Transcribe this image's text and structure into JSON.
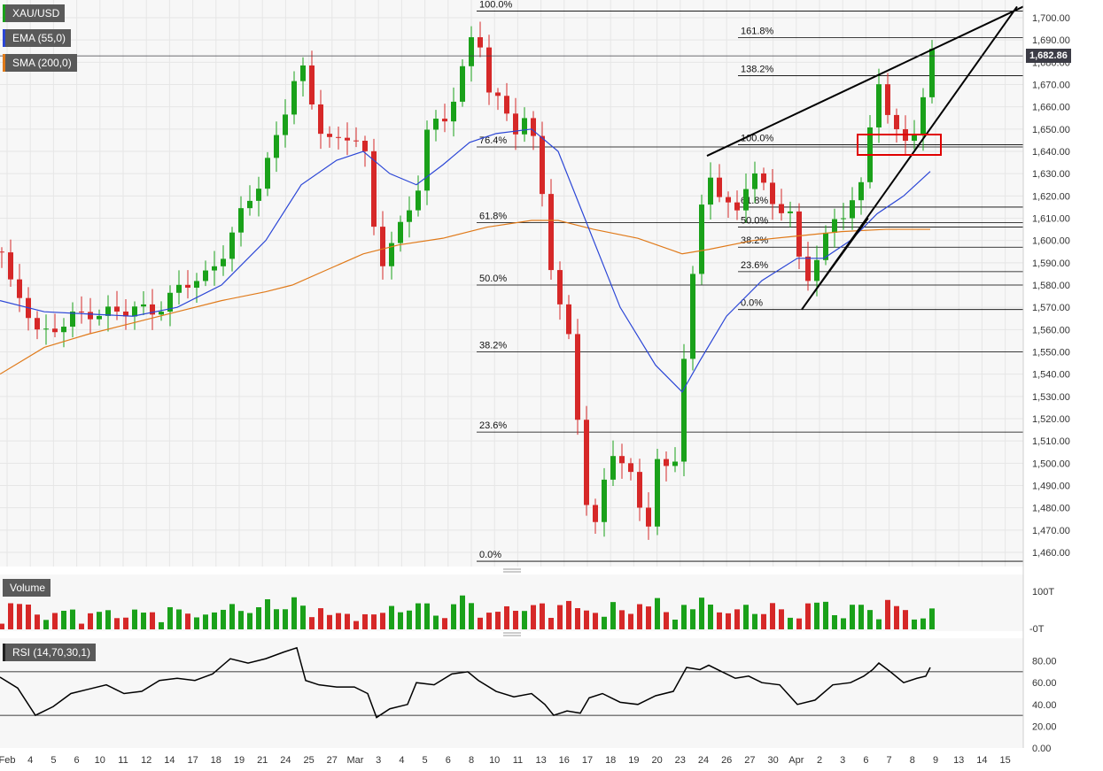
{
  "legend": {
    "symbol": "XAU/USD",
    "ema": "EMA (55,0)",
    "sma": "SMA (200,0)",
    "volume": "Volume",
    "rsi": "RSI (14,70,30,1)"
  },
  "last_price_label": "1,682.86",
  "colors": {
    "bg": "#f7f7f7",
    "up": "#1aa11a",
    "down": "#d62828",
    "ema": "#2b46d6",
    "sma": "#e07a1a",
    "grid": "#e6e6e6",
    "line": "#000000",
    "price_tag": "#3c3c46",
    "highlight_box": "#e00000"
  },
  "chart_data": [
    {
      "type": "candlestick",
      "title": "XAU/USD",
      "ylim": [
        1455,
        1705
      ],
      "y_ticks": [
        "1,460.00",
        "1,470.00",
        "1,480.00",
        "1,490.00",
        "1,500.00",
        "1,510.00",
        "1,520.00",
        "1,530.00",
        "1,540.00",
        "1,550.00",
        "1,560.00",
        "1,570.00",
        "1,580.00",
        "1,590.00",
        "1,600.00",
        "1,610.00",
        "1,620.00",
        "1,630.00",
        "1,640.00",
        "1,650.00",
        "1,660.00",
        "1,670.00",
        "1,680.00",
        "1,690.00",
        "1,700.00"
      ],
      "x_ticks": [
        "Feb",
        "4",
        "5",
        "6",
        "10",
        "11",
        "12",
        "14",
        "17",
        "18",
        "19",
        "21",
        "24",
        "25",
        "27",
        "Mar",
        "3",
        "4",
        "5",
        "6",
        "8",
        "10",
        "11",
        "13",
        "16",
        "17",
        "18",
        "19",
        "20",
        "23",
        "24",
        "26",
        "27",
        "30",
        "Apr",
        "2",
        "3",
        "6",
        "7",
        "8",
        "9",
        "13",
        "14",
        "15"
      ],
      "close_path": [
        [
          0,
          1595
        ],
        [
          12,
          1578
        ],
        [
          28,
          1574
        ],
        [
          45,
          1558
        ],
        [
          70,
          1560
        ],
        [
          100,
          1570
        ],
        [
          140,
          1566
        ],
        [
          180,
          1572
        ],
        [
          230,
          1583
        ],
        [
          260,
          1602
        ],
        [
          290,
          1622
        ],
        [
          310,
          1645
        ],
        [
          330,
          1672
        ],
        [
          340,
          1678
        ],
        [
          348,
          1662
        ],
        [
          360,
          1650
        ],
        [
          380,
          1645
        ],
        [
          400,
          1650
        ],
        [
          418,
          1630
        ],
        [
          425,
          1580
        ],
        [
          440,
          1600
        ],
        [
          470,
          1620
        ],
        [
          480,
          1648
        ],
        [
          500,
          1650
        ],
        [
          515,
          1670
        ],
        [
          530,
          1690
        ],
        [
          540,
          1694
        ],
        [
          550,
          1668
        ],
        [
          565,
          1658
        ],
        [
          580,
          1650
        ],
        [
          595,
          1660
        ],
        [
          605,
          1640
        ],
        [
          618,
          1605
        ],
        [
          625,
          1575
        ],
        [
          640,
          1560
        ],
        [
          650,
          1530
        ],
        [
          660,
          1490
        ],
        [
          670,
          1470
        ],
        [
          690,
          1505
        ],
        [
          700,
          1500
        ],
        [
          715,
          1490
        ],
        [
          730,
          1470
        ],
        [
          740,
          1505
        ],
        [
          760,
          1490
        ],
        [
          770,
          1540
        ],
        [
          780,
          1575
        ],
        [
          790,
          1610
        ],
        [
          800,
          1635
        ],
        [
          815,
          1620
        ],
        [
          830,
          1608
        ],
        [
          840,
          1622
        ],
        [
          850,
          1630
        ],
        [
          870,
          1620
        ],
        [
          890,
          1615
        ],
        [
          900,
          1598
        ],
        [
          905,
          1574
        ],
        [
          920,
          1590
        ],
        [
          940,
          1610
        ],
        [
          960,
          1618
        ],
        [
          975,
          1622
        ],
        [
          985,
          1660
        ],
        [
          992,
          1672
        ],
        [
          1000,
          1658
        ],
        [
          1010,
          1650
        ],
        [
          1025,
          1648
        ],
        [
          1035,
          1650
        ],
        [
          1042,
          1660
        ],
        [
          1050,
          1682
        ]
      ],
      "ema_path": [
        [
          0,
          1573
        ],
        [
          50,
          1568
        ],
        [
          100,
          1567
        ],
        [
          150,
          1566
        ],
        [
          200,
          1570
        ],
        [
          250,
          1580
        ],
        [
          300,
          1600
        ],
        [
          340,
          1625
        ],
        [
          380,
          1636
        ],
        [
          410,
          1640
        ],
        [
          440,
          1630
        ],
        [
          470,
          1625
        ],
        [
          500,
          1634
        ],
        [
          530,
          1644
        ],
        [
          560,
          1648
        ],
        [
          600,
          1650
        ],
        [
          630,
          1640
        ],
        [
          660,
          1610
        ],
        [
          700,
          1570
        ],
        [
          740,
          1544
        ],
        [
          770,
          1532
        ],
        [
          790,
          1546
        ],
        [
          820,
          1566
        ],
        [
          860,
          1582
        ],
        [
          900,
          1592
        ],
        [
          930,
          1592
        ],
        [
          960,
          1600
        ],
        [
          990,
          1612
        ],
        [
          1020,
          1620
        ],
        [
          1050,
          1631
        ]
      ],
      "sma_path": [
        [
          0,
          1540
        ],
        [
          50,
          1552
        ],
        [
          100,
          1558
        ],
        [
          150,
          1563
        ],
        [
          200,
          1568
        ],
        [
          250,
          1573
        ],
        [
          300,
          1577
        ],
        [
          330,
          1580
        ],
        [
          370,
          1587
        ],
        [
          410,
          1594
        ],
        [
          450,
          1598
        ],
        [
          500,
          1601
        ],
        [
          550,
          1606
        ],
        [
          600,
          1609
        ],
        [
          630,
          1609
        ],
        [
          670,
          1605
        ],
        [
          720,
          1601
        ],
        [
          770,
          1594
        ],
        [
          800,
          1596
        ],
        [
          850,
          1600
        ],
        [
          900,
          1602
        ],
        [
          950,
          1604
        ],
        [
          1000,
          1605
        ],
        [
          1050,
          1605
        ]
      ],
      "last_price": 1682.86,
      "fib_retracement_1": [
        {
          "label": "100.0%",
          "price": 1703
        },
        {
          "label": "76.4%",
          "price": 1642
        },
        {
          "label": "61.8%",
          "price": 1608
        },
        {
          "label": "50.0%",
          "price": 1580
        },
        {
          "label": "38.2%",
          "price": 1550
        },
        {
          "label": "23.6%",
          "price": 1514
        },
        {
          "label": "0.0%",
          "price": 1456
        }
      ],
      "fib_retracement_2": [
        {
          "label": "161.8%",
          "price": 1691
        },
        {
          "label": "138.2%",
          "price": 1674
        },
        {
          "label": "100.0%",
          "price": 1643
        },
        {
          "label": "61.8%",
          "price": 1615
        },
        {
          "label": "50.0%",
          "price": 1606
        },
        {
          "label": "38.2%",
          "price": 1597
        },
        {
          "label": "23.6%",
          "price": 1586
        },
        {
          "label": "0.0%",
          "price": 1569
        }
      ]
    },
    {
      "type": "bar",
      "title": "Volume",
      "y_ticks": [
        "100T",
        "-0T"
      ]
    },
    {
      "type": "line",
      "title": "RSI (14,70,30,1)",
      "ylim": [
        0,
        95
      ],
      "levels": [
        70,
        30
      ],
      "y_ticks": [
        "80.00",
        "60.00",
        "40.00",
        "20.00",
        "0.00"
      ],
      "rsi_path": [
        [
          0,
          65
        ],
        [
          20,
          55
        ],
        [
          40,
          30
        ],
        [
          60,
          38
        ],
        [
          80,
          50
        ],
        [
          100,
          54
        ],
        [
          120,
          58
        ],
        [
          140,
          50
        ],
        [
          160,
          52
        ],
        [
          180,
          62
        ],
        [
          200,
          64
        ],
        [
          220,
          62
        ],
        [
          240,
          68
        ],
        [
          260,
          82
        ],
        [
          280,
          78
        ],
        [
          300,
          82
        ],
        [
          320,
          88
        ],
        [
          335,
          92
        ],
        [
          345,
          62
        ],
        [
          360,
          58
        ],
        [
          380,
          56
        ],
        [
          400,
          56
        ],
        [
          415,
          50
        ],
        [
          425,
          28
        ],
        [
          440,
          36
        ],
        [
          460,
          40
        ],
        [
          470,
          60
        ],
        [
          490,
          58
        ],
        [
          510,
          68
        ],
        [
          528,
          70
        ],
        [
          540,
          62
        ],
        [
          560,
          52
        ],
        [
          580,
          47
        ],
        [
          600,
          50
        ],
        [
          615,
          40
        ],
        [
          625,
          30
        ],
        [
          640,
          34
        ],
        [
          655,
          32
        ],
        [
          665,
          46
        ],
        [
          680,
          50
        ],
        [
          700,
          42
        ],
        [
          720,
          40
        ],
        [
          740,
          48
        ],
        [
          760,
          52
        ],
        [
          775,
          74
        ],
        [
          790,
          72
        ],
        [
          800,
          76
        ],
        [
          815,
          70
        ],
        [
          830,
          64
        ],
        [
          845,
          66
        ],
        [
          860,
          60
        ],
        [
          880,
          58
        ],
        [
          900,
          40
        ],
        [
          920,
          44
        ],
        [
          940,
          58
        ],
        [
          960,
          60
        ],
        [
          975,
          66
        ],
        [
          985,
          72
        ],
        [
          992,
          78
        ],
        [
          1005,
          70
        ],
        [
          1020,
          60
        ],
        [
          1035,
          64
        ],
        [
          1045,
          66
        ],
        [
          1050,
          74
        ]
      ]
    }
  ]
}
